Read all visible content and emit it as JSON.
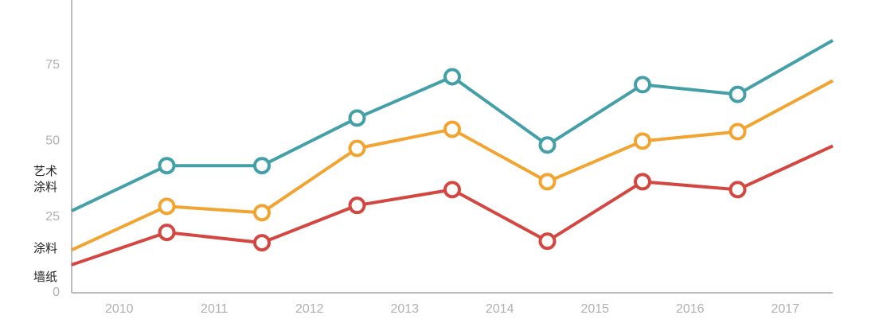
{
  "chart_data": {
    "type": "line",
    "x": [
      2009.5,
      2010.5,
      2011.5,
      2012.5,
      2013.5,
      2014.5,
      2015.5,
      2016.5,
      2017.5
    ],
    "xlim": [
      2009.5,
      2017.5
    ],
    "xticks": [
      2010,
      2011,
      2012,
      2013,
      2014,
      2015,
      2016,
      2017
    ],
    "ylim": [
      0,
      96.5
    ],
    "yticks": [
      0,
      25,
      50,
      75
    ],
    "series": [
      {
        "name": "艺术涂料",
        "color": "#44a0a8",
        "values": [
          27,
          41.9,
          41.9,
          57.6,
          71.2,
          48.7,
          68.6,
          65.4,
          83.2
        ]
      },
      {
        "name": "涂料",
        "color": "#f2a431",
        "values": [
          14.1,
          28.5,
          26.4,
          47.6,
          53.9,
          36.6,
          50,
          53.1,
          69.9
        ]
      },
      {
        "name": "墙纸",
        "color": "#d44640",
        "values": [
          9.2,
          19.9,
          16.5,
          28.8,
          34,
          17,
          36.6,
          34,
          48.4
        ]
      }
    ]
  }
}
